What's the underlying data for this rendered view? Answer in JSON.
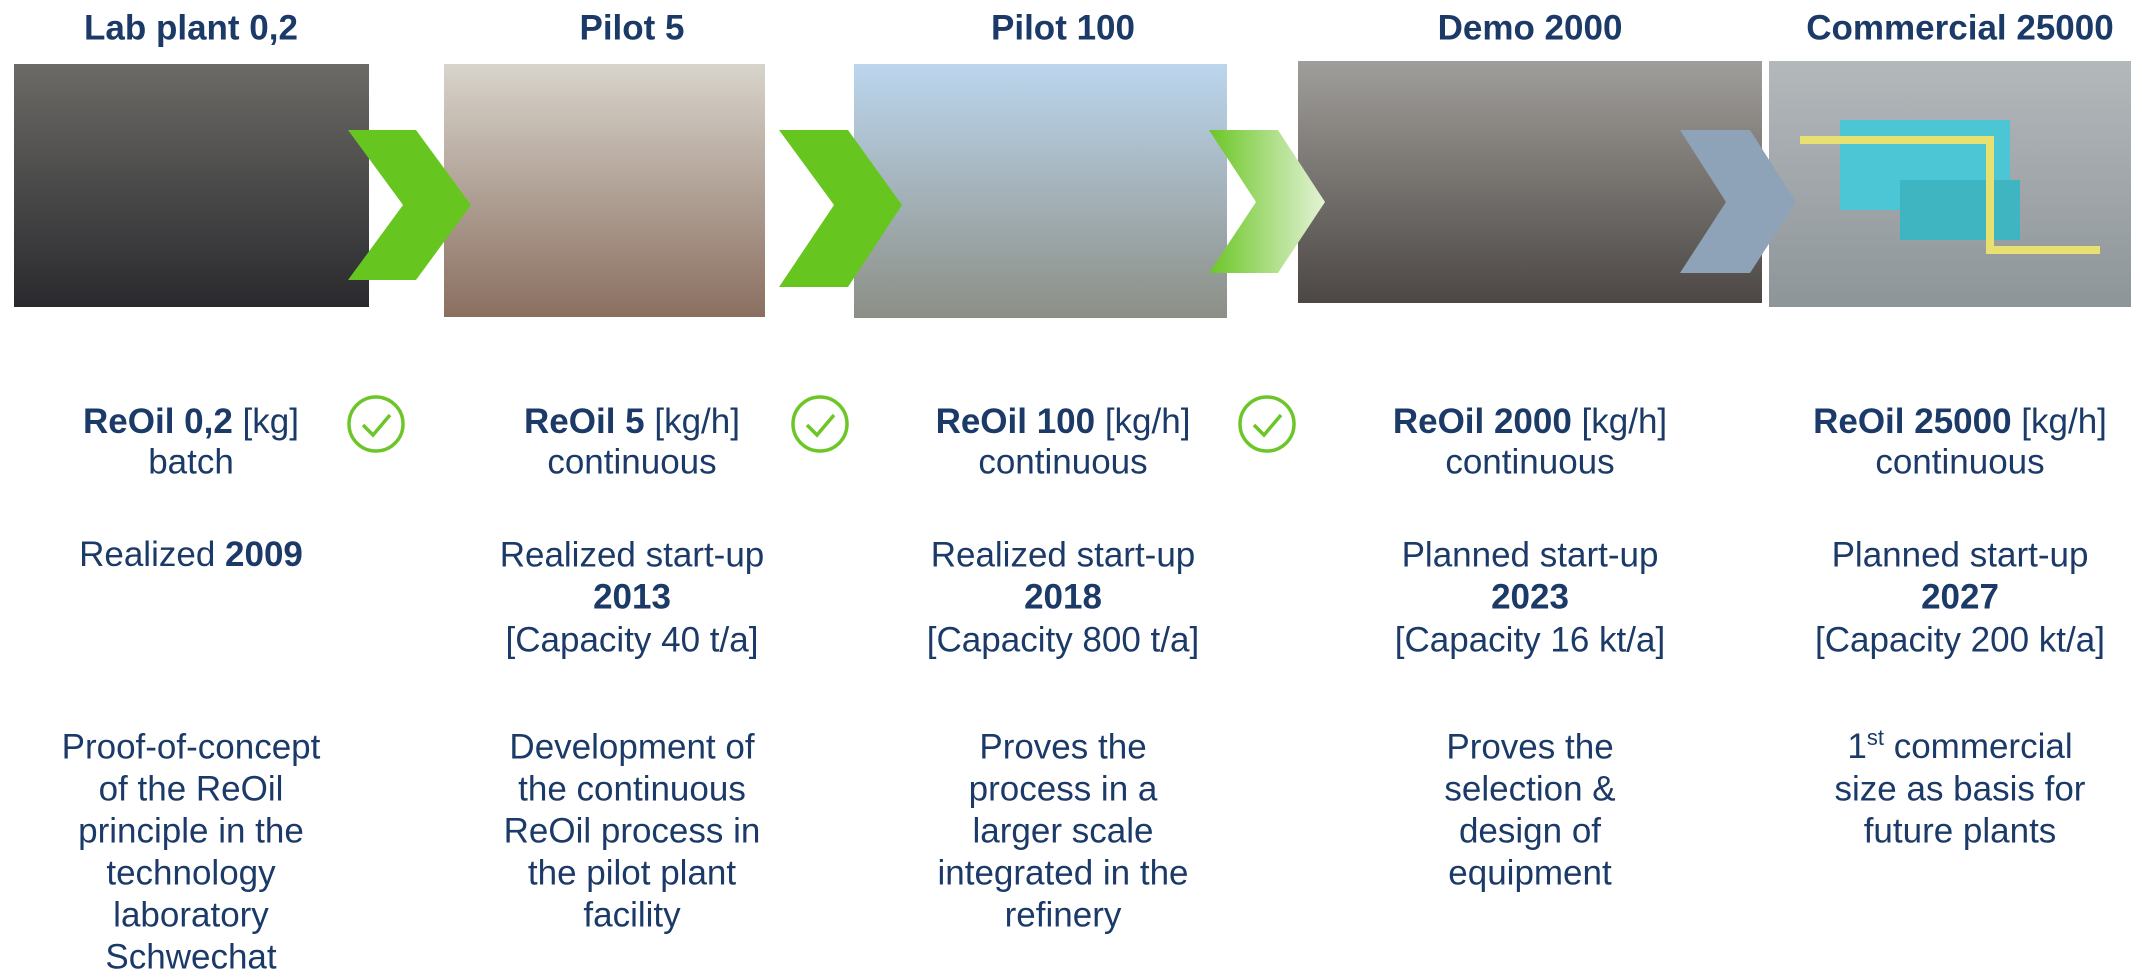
{
  "stages": [
    {
      "title": "Lab plant 0,2",
      "unit_name": "ReOil 0,2",
      "unit": " [kg]",
      "mode": "batch",
      "status": "Realized ",
      "year": "2009",
      "description": [
        "Proof-of-concept",
        "of the ReOil",
        "principle in the",
        "technology",
        "laboratory",
        "Schwechat"
      ]
    },
    {
      "title": "Pilot 5",
      "unit_name": "ReOil 5",
      "unit": " [kg/h]",
      "mode": "continuous",
      "status": "Realized start-up",
      "year": "2013",
      "capacity": "[Capacity 40 t/a]",
      "description": [
        "Development of",
        "the continuous",
        "ReOil process in",
        "the pilot plant",
        "facility"
      ]
    },
    {
      "title": "Pilot 100",
      "unit_name": "ReOil 100",
      "unit": " [kg/h]",
      "mode": "continuous",
      "status": "Realized start-up",
      "year": "2018",
      "capacity": "[Capacity 800 t/a]",
      "description": [
        "Proves the",
        "process in a",
        "larger scale",
        "integrated in the",
        "refinery"
      ]
    },
    {
      "title": "Demo 2000",
      "unit_name": "ReOil 2000",
      "unit": " [kg/h]",
      "mode": "continuous",
      "status": "Planned start-up",
      "year": "2023",
      "capacity": "[Capacity 16 kt/a]",
      "description": [
        "Proves the",
        "selection &",
        "design of",
        "equipment"
      ]
    },
    {
      "title": "Commercial 25000",
      "unit_name": "ReOil 25000",
      "unit": " [kg/h]",
      "mode": "continuous",
      "status": "Planned start-up",
      "year": "2027",
      "capacity": "[Capacity 200 kt/a]",
      "ordinal_number": "1",
      "ordinal_suffix": "st",
      "description": [
        " commercial",
        "size as basis for",
        "future plants"
      ]
    }
  ]
}
